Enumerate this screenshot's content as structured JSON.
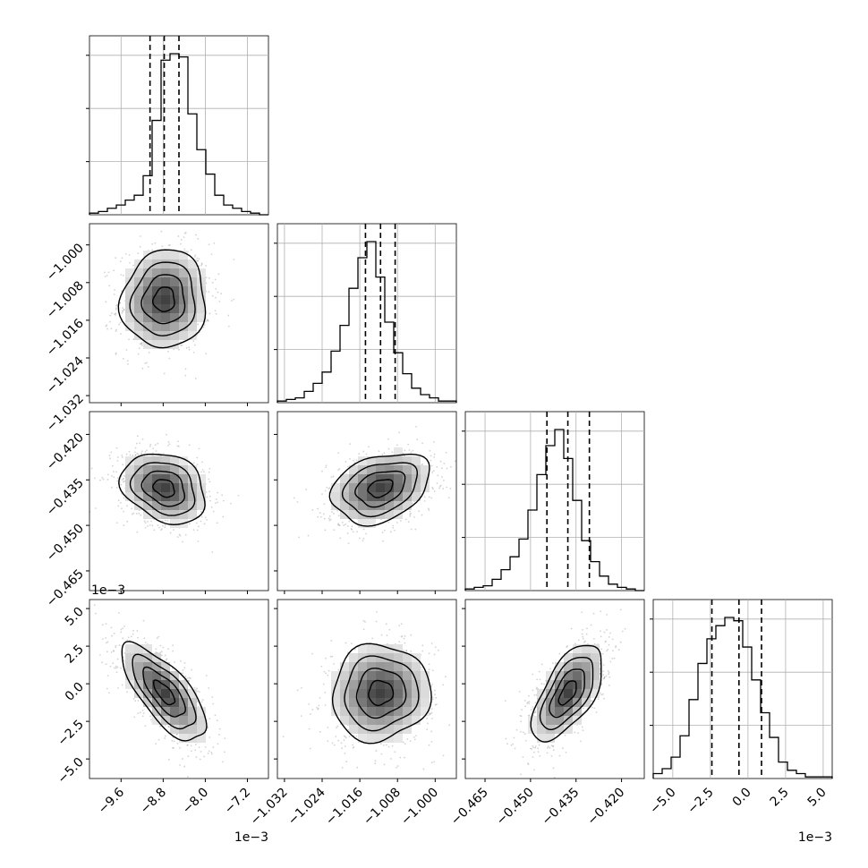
{
  "chart_data": {
    "type": "corner",
    "title": "",
    "grid": true,
    "quantiles_shown": [
      0.16,
      0.5,
      0.84
    ],
    "parameters": [
      {
        "index": 0,
        "range": [
          -10.2,
          -6.8
        ],
        "ticks": [
          -9.6,
          -8.8,
          -8.0,
          -7.2
        ],
        "tick_labels": [
          "−9.6",
          "−8.8",
          "−8.0",
          "−7.2"
        ],
        "offset_label": "1e−3"
      },
      {
        "index": 1,
        "range": [
          -1.0335,
          -0.9955
        ],
        "ticks": [
          -1.032,
          -1.024,
          -1.016,
          -1.008,
          -1.0
        ],
        "tick_labels": [
          "−1.032",
          "−1.024",
          "−1.016",
          "−1.008",
          "−1.000"
        ],
        "offset_label": ""
      },
      {
        "index": 2,
        "range": [
          -0.4715,
          -0.4125
        ],
        "ticks": [
          -0.465,
          -0.45,
          -0.435,
          -0.42
        ],
        "tick_labels": [
          "−0.465",
          "−0.450",
          "−0.435",
          "−0.420"
        ],
        "offset_label": ""
      },
      {
        "index": 3,
        "range": [
          -6.3,
          5.6
        ],
        "ticks": [
          -5.0,
          -2.5,
          0.0,
          2.5,
          5.0
        ],
        "tick_labels": [
          "−5.0",
          "−2.5",
          "0.0",
          "2.5",
          "5.0"
        ],
        "offset_label": "1e−3"
      }
    ],
    "marginals": [
      {
        "param": 0,
        "quantiles": [
          -9.05,
          -8.78,
          -8.5
        ],
        "bin_start": -10.2,
        "bin_width": 0.17,
        "counts": [
          1,
          2,
          4,
          6,
          9,
          12,
          24,
          58,
          95,
          99,
          97,
          62,
          40,
          25,
          12,
          6,
          4,
          2,
          1,
          0
        ]
      },
      {
        "param": 1,
        "quantiles": [
          -1.0148,
          -1.0116,
          -1.0085
        ],
        "bin_start": -1.0335,
        "bin_width": 0.0019,
        "counts": [
          1,
          2,
          3,
          7,
          12,
          19,
          32,
          48,
          71,
          90,
          100,
          78,
          50,
          31,
          18,
          9,
          5,
          3,
          1,
          1
        ]
      },
      {
        "param": 2,
        "quantiles": [
          -0.4446,
          -0.4377,
          -0.4306
        ],
        "bin_start": -0.4715,
        "bin_width": 0.00295,
        "counts": [
          1,
          2,
          3,
          7,
          13,
          21,
          32,
          50,
          72,
          90,
          100,
          82,
          56,
          31,
          18,
          9,
          4,
          2,
          1,
          0
        ]
      },
      {
        "param": 3,
        "quantiles": [
          -2.4,
          -0.6,
          0.9
        ],
        "bin_start": -6.3,
        "bin_width": 0.595,
        "counts": [
          3,
          6,
          13,
          26,
          48,
          70,
          85,
          93,
          98,
          96,
          80,
          60,
          40,
          25,
          10,
          5,
          3,
          1,
          1,
          1
        ]
      }
    ],
    "pairs": [
      {
        "x_param": 0,
        "y_param": 1,
        "mean": [
          -8.78,
          -1.0116
        ],
        "sd": [
          0.4,
          0.0052
        ],
        "corr": 0.05
      },
      {
        "x_param": 0,
        "y_param": 2,
        "mean": [
          -8.78,
          -0.4377
        ],
        "sd": [
          0.4,
          0.0058
        ],
        "corr": -0.25
      },
      {
        "x_param": 1,
        "y_param": 2,
        "mean": [
          -1.0116,
          -0.4377
        ],
        "sd": [
          0.0052,
          0.0058
        ],
        "corr": 0.3
      },
      {
        "x_param": 0,
        "y_param": 3,
        "mean": [
          -8.78,
          -0.6
        ],
        "sd": [
          0.4,
          1.6
        ],
        "corr": -0.72
      },
      {
        "x_param": 1,
        "y_param": 3,
        "mean": [
          -1.0116,
          -0.6
        ],
        "sd": [
          0.0052,
          1.6
        ],
        "corr": 0.05
      },
      {
        "x_param": 2,
        "y_param": 3,
        "mean": [
          -0.4377,
          -0.6
        ],
        "sd": [
          0.0058,
          1.6
        ],
        "corr": 0.62
      }
    ],
    "colors": {
      "line": "#000000",
      "grid": "#b0b0b0",
      "points": "#808080",
      "density_dark": "#303030"
    }
  }
}
